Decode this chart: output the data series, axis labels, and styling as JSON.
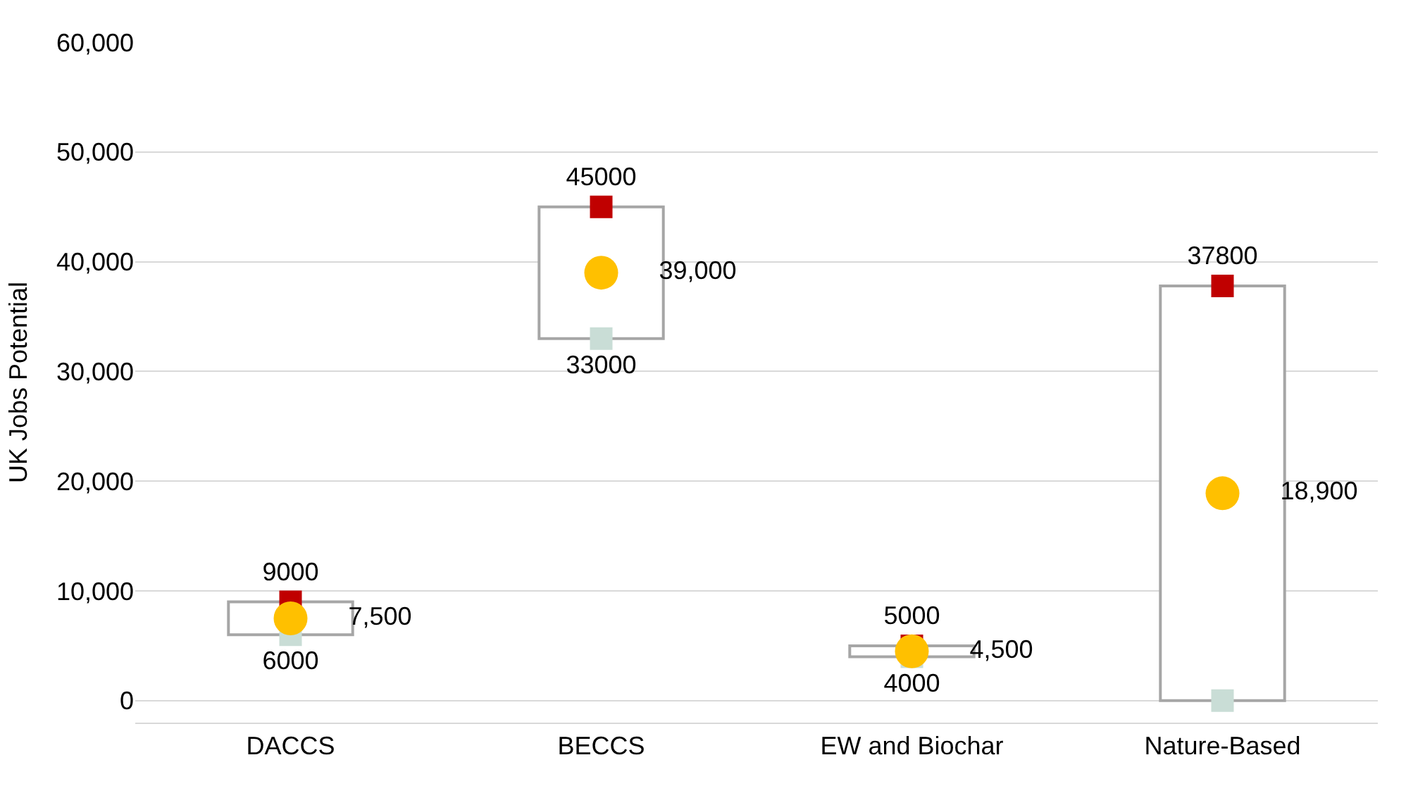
{
  "chart_data": {
    "type": "bar",
    "ylabel": "UK Jobs Potential",
    "categories": [
      "DACCS",
      "BECCS",
      "EW and Biochar",
      "Nature-Based"
    ],
    "ylim": [
      -2000,
      60000
    ],
    "yticks": [
      0,
      {
        "value": 10000,
        "label": "10,000"
      },
      {
        "value": 20000,
        "label": "20,000"
      },
      {
        "value": 30000,
        "label": "30,000"
      },
      {
        "value": 40000,
        "label": "40,000"
      },
      {
        "value": 50000,
        "label": "50,000"
      },
      {
        "value": 60000,
        "label": "60,000"
      }
    ],
    "grid": "y",
    "series": [
      {
        "color": "#ffffff",
        "base": [
          6000,
          33000,
          4000,
          0
        ],
        "values": [
          3000,
          12000,
          1000,
          37800
        ]
      },
      {
        "type": "scatter",
        "marker": "square",
        "color": "#c00000",
        "values": [
          9000,
          45000,
          5000,
          37800
        ],
        "value_labels": [
          "9000",
          "45000",
          "5000",
          "37800"
        ]
      },
      {
        "type": "scatter",
        "marker": "square",
        "color": "#c9ddd6",
        "values": [
          6000,
          33000,
          4000,
          0
        ],
        "value_labels": [
          "6000",
          "33000",
          "4000",
          null
        ]
      },
      {
        "type": "scatter",
        "marker": "circle",
        "color": "#ffc000",
        "values": [
          7500,
          39000,
          4500,
          18900
        ],
        "value_labels": [
          "7,500",
          "39,000",
          "4,500",
          "18,900"
        ]
      }
    ]
  }
}
